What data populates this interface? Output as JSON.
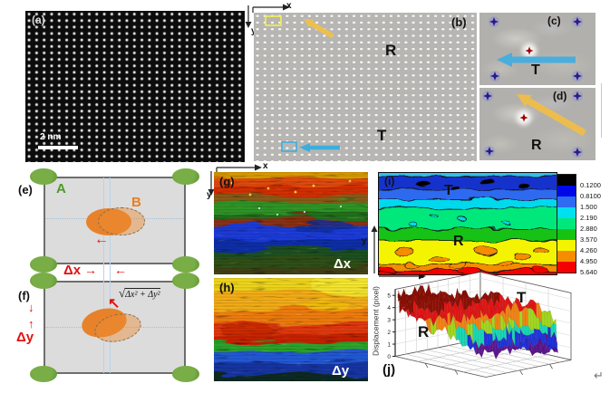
{
  "figure": {
    "panel_a": {
      "tag": "(a)",
      "scale_bar_label": "2 nm"
    },
    "panel_b": {
      "tag": "(b)",
      "axis_x": "x",
      "axis_y": "y",
      "region_r": "R",
      "region_t": "T"
    },
    "panel_c": {
      "tag": "(c)",
      "region": "T"
    },
    "panel_d": {
      "tag": "(d)",
      "region": "R"
    },
    "panel_e": {
      "tag": "(e)",
      "lattice_a": "A",
      "atom_b": "B",
      "delta_x": "Δx",
      "arrow_left": "←",
      "arrow_right": "→"
    },
    "panel_f": {
      "tag": "(f)",
      "delta_y": "Δy",
      "arrow_up": "↑",
      "arrow_down": "↓",
      "arrow_diag": "↖",
      "radical": "√",
      "radicand": "Δx² + Δy²"
    },
    "panel_g": {
      "tag": "(g)",
      "map_label": "Δx",
      "axis_x": "x",
      "axis_y": "y"
    },
    "panel_h": {
      "tag": "(h)",
      "map_label": "Δy"
    },
    "panel_i": {
      "tag": "(i)",
      "region_t": "T",
      "region_r": "R",
      "axis_x": "x",
      "axis_y": "y"
    },
    "panel_j": {
      "tag": "(j)",
      "region_t": "T",
      "region_r": "R",
      "z_axis_label": "Displacement (pixel)"
    },
    "paragraph_mark": "↵"
  },
  "chart_data": [
    {
      "panel": "i",
      "type": "heatmap",
      "style": "filled-contour",
      "colorbar": {
        "labels": [
          "0.1200",
          "0.8100",
          "1.500",
          "2.190",
          "2.880",
          "3.570",
          "4.260",
          "4.950",
          "5.640"
        ],
        "colors": [
          "#000000",
          "#0008e8",
          "#2e6bf0",
          "#00e0f0",
          "#00e87c",
          "#16c212",
          "#f4f400",
          "#f68c00",
          "#f40000"
        ]
      },
      "bands": [
        {
          "to": 0.04,
          "color": "#30c0e8"
        },
        {
          "to": 0.16,
          "color": "#1630cc"
        },
        {
          "to": 0.26,
          "color": "#2e6bf0"
        },
        {
          "to": 0.35,
          "color": "#00d8ee"
        },
        {
          "to": 0.55,
          "color": "#00e87c"
        },
        {
          "to": 0.67,
          "color": "#16c212"
        },
        {
          "to": 0.9,
          "color": "#f4f400"
        },
        {
          "to": 0.965,
          "color": "#f68c00"
        },
        {
          "to": 1.0,
          "color": "#f40000"
        }
      ],
      "annotations": [
        "T",
        "R"
      ],
      "x_axis": "x",
      "y_axis": "y",
      "value_meaning": "displacement (pixel): low ≈0.8–1.5 in T band (top), high ≈4.3–5.6 in R band (bottom)"
    },
    {
      "panel": "g",
      "type": "heatmap",
      "label": "Δx",
      "bands": [
        {
          "to": 0.06,
          "color": "#d89a00"
        },
        {
          "to": 0.14,
          "color": "#e04c08"
        },
        {
          "to": 0.23,
          "color": "#d42e06"
        },
        {
          "to": 0.29,
          "color": "#8a5a14"
        },
        {
          "to": 0.41,
          "color": "#2f9428"
        },
        {
          "to": 0.47,
          "color": "#20701a"
        },
        {
          "to": 0.53,
          "color": "#8a3012"
        },
        {
          "to": 0.67,
          "color": "#1b3ad8"
        },
        {
          "to": 0.75,
          "color": "#0c2fa8"
        },
        {
          "to": 0.83,
          "color": "#1a5024"
        },
        {
          "to": 0.93,
          "color": "#2f5016"
        },
        {
          "to": 1.0,
          "color": "#3f3f14"
        }
      ]
    },
    {
      "panel": "h",
      "type": "heatmap",
      "label": "Δy",
      "bands": [
        {
          "to": 0.13,
          "color": "#eed41c"
        },
        {
          "to": 0.3,
          "color": "#f2ac14"
        },
        {
          "to": 0.44,
          "color": "#ee7c0c"
        },
        {
          "to": 0.55,
          "color": "#e03808"
        },
        {
          "to": 0.62,
          "color": "#c62404"
        },
        {
          "to": 0.7,
          "color": "#2aa42c"
        },
        {
          "to": 0.81,
          "color": "#2458d4"
        },
        {
          "to": 0.93,
          "color": "#1334a4"
        },
        {
          "to": 1.0,
          "color": "#0e2c24"
        }
      ]
    },
    {
      "panel": "j",
      "type": "surface3d",
      "z_label": "Displacement (pixel)",
      "z_ticks": [
        "0",
        "1",
        "2",
        "3",
        "4",
        "5"
      ],
      "z_max": 5.5,
      "regions": {
        "R": {
          "mean_z": 4.4
        },
        "T": {
          "mean_z": 1.3
        }
      },
      "palette": [
        {
          "min": 4.3,
          "color": "#8c0f05"
        },
        {
          "min": 3.55,
          "color": "#e11414"
        },
        {
          "min": 3.0,
          "color": "#f08414"
        },
        {
          "min": 2.5,
          "color": "#a0d81e"
        },
        {
          "min": 2.0,
          "color": "#17d8b4"
        },
        {
          "min": 1.45,
          "color": "#2133dd"
        },
        {
          "min": -9,
          "color": "#5c1790"
        }
      ],
      "seed": 7
    }
  ]
}
